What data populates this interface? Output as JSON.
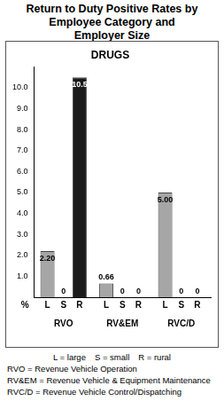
{
  "chart_data": {
    "type": "bar",
    "title": "Return to Duty Positive Rates by Employee Category and Employer Size",
    "subtitle": "DRUGS",
    "categories": [
      "RVO",
      "RV&EM",
      "RVC/D"
    ],
    "series": [
      {
        "name": "L",
        "color": "#a6a6a6",
        "values": [
          2.2,
          0.66,
          5.0
        ],
        "value_labels": [
          "2.20",
          "0.66",
          "5.00"
        ]
      },
      {
        "name": "S",
        "color": "#a6a6a6",
        "values": [
          0,
          0,
          0
        ],
        "value_labels": [
          "0",
          "0",
          "0"
        ]
      },
      {
        "name": "R",
        "colors": [
          "#1a1a1a",
          "#a6a6a6",
          "#a6a6a6"
        ],
        "values": [
          10.5,
          0,
          0
        ],
        "value_labels": [
          "10.5",
          "0",
          "0"
        ]
      }
    ],
    "ylabel": "%",
    "ylim": [
      0,
      11
    ],
    "yticks": [
      {
        "value": 1,
        "label": "1.0"
      },
      {
        "value": 2,
        "label": "2.0"
      },
      {
        "value": 3,
        "label": "3.0"
      },
      {
        "value": 4,
        "label": "4.0"
      },
      {
        "value": 5,
        "label": "5.0"
      },
      {
        "value": 6,
        "label": "6.0"
      },
      {
        "value": 7,
        "label": "7.0"
      },
      {
        "value": 8,
        "label": "8.0"
      },
      {
        "value": 9,
        "label": "9.0"
      },
      {
        "value": 10,
        "label": "10.0"
      }
    ],
    "grid": false,
    "data_labels": true,
    "key": [
      "L = large",
      "S = small",
      "R = rural"
    ],
    "notes": [
      "RVO = Revenue Vehicle Operation",
      "RV&EM = Revenue Vehicle & Equipment Maintenance",
      "RVC/D = Revenue Vehicle Control/Dispatching"
    ]
  }
}
